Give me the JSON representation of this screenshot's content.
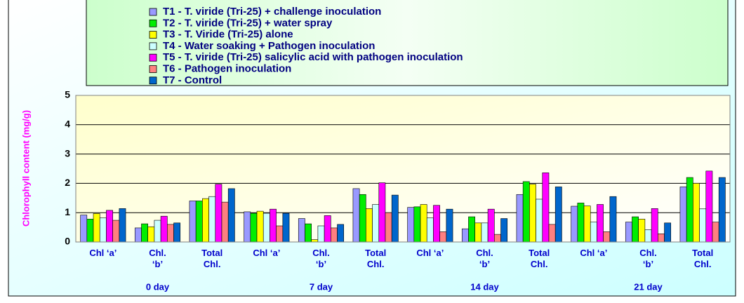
{
  "chart_data": {
    "type": "bar",
    "ylabel": "Chlorophyll content (mg/g)",
    "categories": [
      "Chl ‘a’",
      "Chl.\n‘b’",
      "Total\nChl.",
      "Chl ‘a’",
      "Chl.\n‘b’",
      "Total\nChl.",
      "Chl ‘a’",
      "Chl.\n‘b’",
      "Total\nChl.",
      "Chl ‘a’",
      "Chl.\n‘b’",
      "Total\nChl."
    ],
    "group_labels": [
      "0 day",
      "7 day",
      "14 day",
      "21 day"
    ],
    "ylim": [
      0,
      5
    ],
    "yticks": [
      0,
      1,
      2,
      3,
      4,
      5
    ],
    "grid": true,
    "series": [
      {
        "name": "T1 - T. viride (Tri-25) + challenge inoculation",
        "color": "#9999ff",
        "values": [
          0.92,
          0.48,
          1.4,
          1.03,
          0.8,
          1.82,
          1.18,
          0.45,
          1.62,
          1.22,
          0.68,
          1.88
        ]
      },
      {
        "name": "T2 - T. viride (Tri-25) + water spray",
        "color": "#00ee00",
        "values": [
          0.78,
          0.62,
          1.4,
          0.98,
          0.62,
          1.62,
          1.2,
          0.86,
          2.06,
          1.33,
          0.86,
          2.2
        ]
      },
      {
        "name": "T3 - T. Viride (Tri-25) alone",
        "color": "#ffff00",
        "values": [
          0.97,
          0.52,
          1.48,
          1.05,
          0.08,
          1.14,
          1.28,
          0.65,
          1.97,
          1.23,
          0.78,
          2.0
        ]
      },
      {
        "name": "T4 - Water soaking + Pathogen inoculation",
        "color": "#ccffff",
        "values": [
          0.82,
          0.74,
          1.55,
          0.98,
          0.55,
          1.28,
          0.82,
          0.65,
          1.46,
          0.68,
          0.42,
          1.13
        ]
      },
      {
        "name": "T5 - T. viride (Tri-25) salicylic acid with pathogen inoculation",
        "color": "#ff00ff",
        "values": [
          1.08,
          0.88,
          1.97,
          1.12,
          0.9,
          2.02,
          1.25,
          1.12,
          2.36,
          1.28,
          1.14,
          2.42
        ]
      },
      {
        "name": "T6 - Pathogen inoculation",
        "color": "#ff8080",
        "values": [
          0.74,
          0.6,
          1.36,
          0.55,
          0.48,
          1.0,
          0.35,
          0.26,
          0.6,
          0.35,
          0.28,
          0.68
        ]
      },
      {
        "name": "T7 - Control",
        "color": "#0066cc",
        "values": [
          1.14,
          0.65,
          1.82,
          0.98,
          0.6,
          1.6,
          1.12,
          0.8,
          1.88,
          1.55,
          0.65,
          2.2
        ]
      }
    ]
  }
}
